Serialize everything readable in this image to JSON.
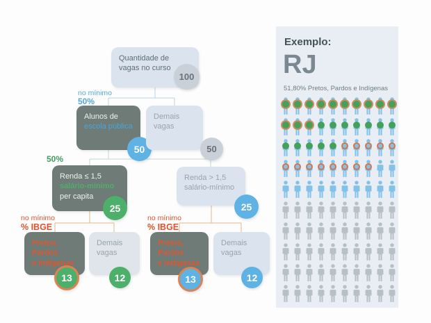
{
  "flowchart": {
    "root": {
      "line1": "Quantidade de",
      "line2": "vagas no curso",
      "badge": "100"
    },
    "min50_label": {
      "line1": "no mínimo",
      "line2": "50%"
    },
    "alunos": {
      "line1": "Alunos de",
      "line2": "escola pública",
      "badge": "50"
    },
    "demais_row2": {
      "line1": "Demais",
      "line2": "vagas",
      "badge": "50"
    },
    "pct50_label": "50%",
    "renda_low": {
      "line1": "Renda ≤ 1,5",
      "line2": "salário-mínimo",
      "line3": "per capita",
      "badge": "25"
    },
    "renda_high": {
      "line1": "Renda > 1,5",
      "line2": "salário-mínimo",
      "badge": "25"
    },
    "ibge_label_left": {
      "line1": "no mínimo",
      "line2": "% IBGE"
    },
    "ibge_label_right": {
      "line1": "no mínimo",
      "line2": "% IBGE"
    },
    "ppi_left": {
      "line1": "Pretos, Pardos",
      "line2": "e Indígenas",
      "badge": "13"
    },
    "demais_left": {
      "line1": "Demais",
      "line2": "vagas",
      "badge": "12"
    },
    "ppi_right": {
      "line1": "Pretos, Pardos",
      "line2": "e Indígenas",
      "badge": "13"
    },
    "demais_right": {
      "line1": "Demais",
      "line2": "vagas",
      "badge": "12"
    }
  },
  "panel": {
    "title": "Exemplo:",
    "state": "RJ",
    "subtitle": "51,80% Pretos, Pardos e Indígenas",
    "pictogram": {
      "columns": 10,
      "rows": [
        [
          "green-ring",
          "green-ring",
          "green-ring",
          "green-ring",
          "green-ring",
          "green-ring",
          "green-ring",
          "green-ring",
          "green-ring",
          "green-ring"
        ],
        [
          "green-ring",
          "green-ring",
          "green-ring",
          "green",
          "green",
          "green",
          "green",
          "green",
          "green",
          "green"
        ],
        [
          "green",
          "green",
          "green",
          "green",
          "green",
          "ring",
          "ring",
          "ring",
          "ring",
          "ring"
        ],
        [
          "ring",
          "ring",
          "ring",
          "ring",
          "ring",
          "ring",
          "ring",
          "ring",
          "blue",
          "blue"
        ],
        [
          "blue",
          "blue",
          "blue",
          "blue",
          "blue",
          "blue",
          "blue",
          "blue",
          "blue",
          "blue"
        ],
        [
          "gray",
          "gray",
          "gray",
          "gray",
          "gray",
          "gray",
          "gray",
          "gray",
          "gray",
          "gray"
        ],
        [
          "gray",
          "gray",
          "gray",
          "gray",
          "gray",
          "gray",
          "gray",
          "gray",
          "gray",
          "gray"
        ],
        [
          "gray",
          "gray",
          "gray",
          "gray",
          "gray",
          "gray",
          "gray",
          "gray",
          "gray",
          "gray"
        ],
        [
          "gray",
          "gray",
          "gray",
          "gray",
          "gray",
          "gray",
          "gray",
          "gray",
          "gray",
          "gray"
        ],
        [
          "gray",
          "gray",
          "gray",
          "gray",
          "gray",
          "gray",
          "gray",
          "gray",
          "gray",
          "gray"
        ]
      ],
      "counts": {
        "green_with_ring": 13,
        "green_only": 12,
        "ring_only": 13,
        "plain_blue": 12,
        "gray": 50
      }
    }
  },
  "colors": {
    "dark_box": "#6e7b77",
    "light_box": "#dbe4ee",
    "accent_blue": "#4aa5d9",
    "accent_green": "#4fae6b",
    "accent_orange": "#e1512b",
    "badge_gray": "#c9d0d7",
    "badge_blue": "#5eb3e4",
    "badge_green": "#4caf6a",
    "ring_orange": "#dd8352",
    "panel_bg": "#e8eef4",
    "person_blue": "#82c1e9",
    "person_gray": "#b6c0c6"
  }
}
